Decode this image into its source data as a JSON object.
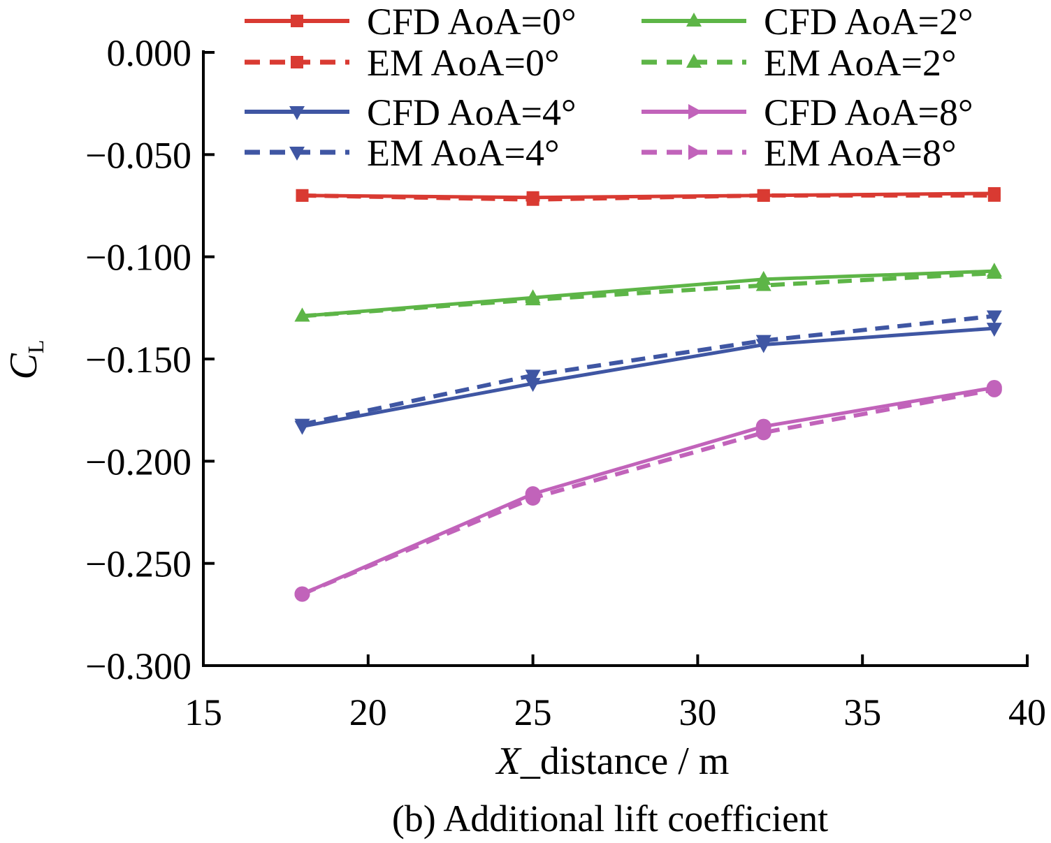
{
  "chart_data": {
    "type": "line",
    "title": "(b) Additional lift coefficient",
    "xlabel_italic": "X",
    "xlabel_rest": "_distance / m",
    "ylabel_main": "C",
    "ylabel_sub": "L",
    "xlim": [
      15,
      40
    ],
    "ylim": [
      -0.3,
      0.0
    ],
    "xticks": [
      "15",
      "20",
      "25",
      "30",
      "35",
      "40"
    ],
    "yticks": [
      "0.000",
      "−0.050",
      "−0.100",
      "−0.150",
      "−0.200",
      "−0.250",
      "−0.300"
    ],
    "x": [
      18,
      25,
      32,
      39
    ],
    "legend_placement": "top",
    "grid": false,
    "series": [
      {
        "name": "CFD AoA=0°",
        "color": "#d93a32",
        "dash": false,
        "marker": "square",
        "values": [
          -0.07,
          -0.071,
          -0.07,
          -0.069
        ]
      },
      {
        "name": "EM AoA=0°",
        "color": "#d93a32",
        "dash": true,
        "marker": "square",
        "values": [
          -0.07,
          -0.072,
          -0.07,
          -0.07
        ]
      },
      {
        "name": "CFD AoA=2°",
        "color": "#5db547",
        "dash": false,
        "marker": "triangle-up",
        "values": [
          -0.129,
          -0.12,
          -0.111,
          -0.107
        ]
      },
      {
        "name": "EM AoA=2°",
        "color": "#5db547",
        "dash": true,
        "marker": "triangle-up",
        "values": [
          -0.129,
          -0.121,
          -0.114,
          -0.108
        ]
      },
      {
        "name": "CFD AoA=4°",
        "color": "#3f56a3",
        "dash": false,
        "marker": "triangle-down",
        "values": [
          -0.183,
          -0.162,
          -0.143,
          -0.135
        ]
      },
      {
        "name": "EM AoA=4°",
        "color": "#3f56a3",
        "dash": true,
        "marker": "triangle-down",
        "values": [
          -0.182,
          -0.158,
          -0.141,
          -0.129
        ]
      },
      {
        "name": "CFD AoA=8°",
        "color": "#c163ba",
        "dash": false,
        "marker": "triangle-right",
        "values": [
          -0.265,
          -0.216,
          -0.183,
          -0.164
        ]
      },
      {
        "name": "EM AoA=8°",
        "color": "#c163ba",
        "dash": true,
        "marker": "triangle-right",
        "values": [
          -0.265,
          -0.218,
          -0.186,
          -0.165
        ]
      }
    ]
  }
}
